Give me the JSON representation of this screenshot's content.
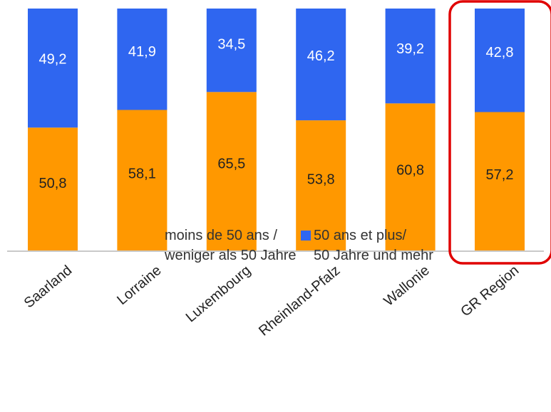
{
  "chart_data": {
    "type": "bar",
    "stacked": true,
    "categories": [
      "Saarland",
      "Lorraine",
      "Luxembourg",
      "Rheinland-Pfalz",
      "Wallonie",
      "GR Region"
    ],
    "series": [
      {
        "name": "moins de 50 ans / weniger als 50 Jahre",
        "legend_lines": [
          "moins de 50 ans /",
          "weniger als 50 Jahre"
        ],
        "color": "#FF9800",
        "values": [
          50.8,
          58.1,
          65.5,
          53.8,
          60.8,
          57.2
        ],
        "labels": [
          "50,8",
          "58,1",
          "65,5",
          "53,8",
          "60,8",
          "57,2"
        ]
      },
      {
        "name": "50 ans et plus/ 50 Jahre und mehr",
        "legend_lines": [
          "50 ans et plus/",
          "50 Jahre und mehr"
        ],
        "color": "#2F66F0",
        "values": [
          49.2,
          41.9,
          34.5,
          46.2,
          39.2,
          42.8
        ],
        "labels": [
          "49,2",
          "41,9",
          "34,5",
          "46,2",
          "39,2",
          "42,8"
        ]
      }
    ],
    "ylim": [
      0,
      100
    ],
    "grid": false,
    "legend_position": "bottom",
    "highlight_category": "GR Region",
    "highlight_color": "#E00000"
  }
}
